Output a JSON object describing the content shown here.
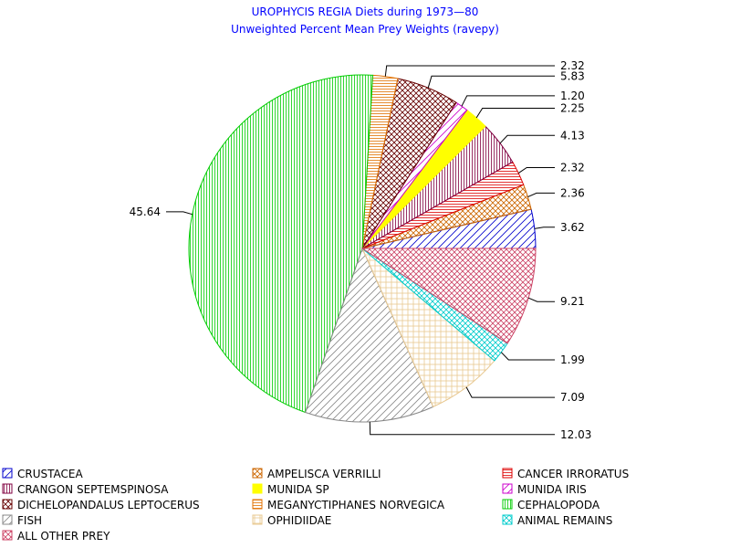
{
  "chart_data": {
    "type": "pie",
    "title": "UROPHYCIS REGIA Diets during 1973—80",
    "subtitle": "Unweighted Percent Mean Prey Weights (ravepy)",
    "start_angle_deg": 0,
    "direction": "counterclockwise",
    "slices": [
      {
        "name": "CRUSTACEA",
        "value": 3.62,
        "label": "3.62",
        "color": "#0000cc",
        "pattern": "diag-up"
      },
      {
        "name": "AMPELISCA VERRILLI",
        "value": 2.36,
        "label": "2.36",
        "color": "#cc6600",
        "pattern": "crosshatch-diag"
      },
      {
        "name": "CANCER IRRORATUS",
        "value": 2.32,
        "label": "2.32",
        "color": "#dd0000",
        "pattern": "horizontal"
      },
      {
        "name": "CRANGON SEPTEMSPINOSA",
        "value": 4.13,
        "label": "4.13",
        "color": "#800040",
        "pattern": "vertical"
      },
      {
        "name": "MUNIDA SP",
        "value": 2.25,
        "label": "2.25",
        "color": "#ffff00",
        "pattern": "solid"
      },
      {
        "name": "MUNIDA IRIS",
        "value": 1.2,
        "label": "1.20",
        "color": "#cc00cc",
        "pattern": "diag-up"
      },
      {
        "name": "DICHELOPANDALUS LEPTOCERUS",
        "value": 5.83,
        "label": "5.83",
        "color": "#660000",
        "pattern": "crosshatch-diag"
      },
      {
        "name": "MEGANYCTIPHANES NORVEGICA",
        "value": 2.32,
        "label": "2.32",
        "color": "#e07000",
        "pattern": "horizontal"
      },
      {
        "name": "CEPHALOPODA",
        "value": 45.64,
        "label": "45.64",
        "color": "#00cc00",
        "pattern": "vertical"
      },
      {
        "name": "FISH",
        "value": 12.03,
        "label": "12.03",
        "color": "#888888",
        "pattern": "diag-up"
      },
      {
        "name": "OPHIDIIDAE",
        "value": 7.09,
        "label": "7.09",
        "color": "#e8c890",
        "pattern": "grid"
      },
      {
        "name": "ANIMAL REMAINS",
        "value": 1.99,
        "label": "1.99",
        "color": "#00cccc",
        "pattern": "crosshatch-diag"
      },
      {
        "name": "ALL OTHER PREY",
        "value": 9.21,
        "label": "9.21",
        "color": "#cc4466",
        "pattern": "crosshatch-diag"
      }
    ],
    "legend_order": [
      "CRUSTACEA",
      "AMPELISCA VERRILLI",
      "CANCER IRRORATUS",
      "CRANGON SEPTEMSPINOSA",
      "MUNIDA SP",
      "MUNIDA IRIS",
      "DICHELOPANDALUS LEPTOCERUS",
      "MEGANYCTIPHANES NORVEGICA",
      "CEPHALOPODA",
      "FISH",
      "OPHIDIIDAE",
      "ANIMAL REMAINS",
      "ALL OTHER PREY"
    ],
    "legend_placement": "bottom"
  }
}
